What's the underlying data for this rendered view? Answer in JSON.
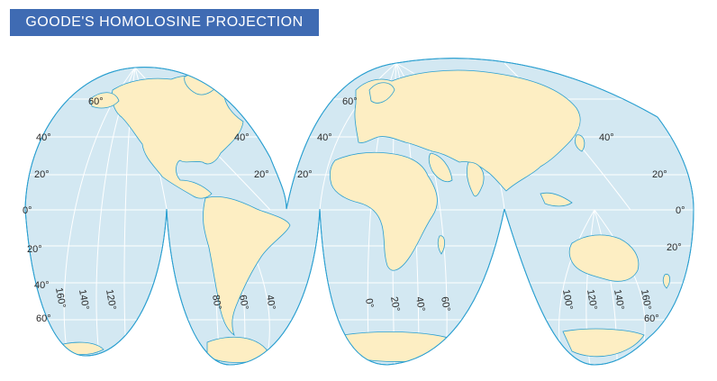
{
  "title": "GOODE'S HOMOLOSINE PROJECTION",
  "colors": {
    "ocean": "#d3e8f2",
    "land": "#fdeec3",
    "coast": "#2a9fd0",
    "grid": "#ffffff",
    "title_bg": "#3f6bb3"
  },
  "lat_labels": {
    "l60a": "60°",
    "l40a": "40°",
    "l20a": "20°",
    "l0a": "0°",
    "l40b": "40°",
    "l20b": "20°",
    "l60c": "60°",
    "l40c": "40°",
    "l20c": "20°",
    "l40d": "40°",
    "l20d": "20°",
    "l0d": "0°",
    "s20a": "20°",
    "s40a": "40°",
    "s60a": "60°",
    "s20d": "20°",
    "s60d": "60°"
  },
  "lon_labels": {
    "w160": "160°",
    "w140": "140°",
    "w120": "120°",
    "w80": "80°",
    "w60": "60°",
    "w40": "40°",
    "e0": "0°",
    "e20": "20°",
    "e40": "40°",
    "e60": "60°",
    "e100": "100°",
    "e120": "120°",
    "e140": "140°",
    "e160": "160°"
  }
}
